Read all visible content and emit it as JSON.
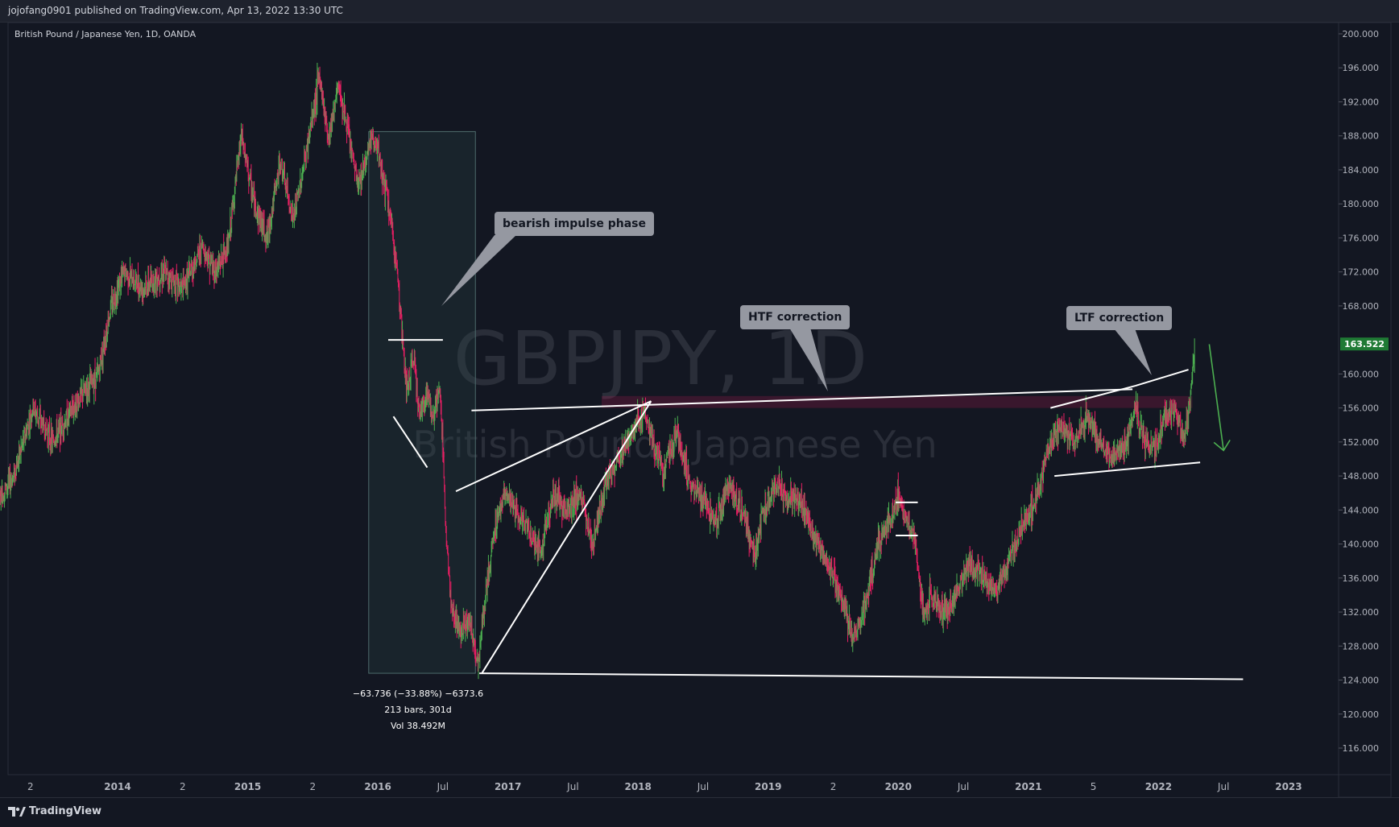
{
  "header": {
    "publisher_line": "jojofang0901 published on TradingView.com, Apr 13, 2022 13:30 UTC"
  },
  "symbol_label": "British Pound / Japanese Yen, 1D, OANDA",
  "watermark": {
    "ticker": "GBPJPY, 1D",
    "name": "British Pound / Japanese Yen"
  },
  "callouts": {
    "bearish": "bearish impulse phase",
    "htf": "HTF correction",
    "ltf": "LTF correction"
  },
  "measure": {
    "line1": "−63.736 (−33.88%) −6373.6",
    "line2": "213 bars, 301d",
    "line3": "Vol 38.492M"
  },
  "footer": {
    "brand": "TradingView"
  },
  "colors": {
    "up": "#4caf50",
    "down": "#e91e63",
    "price_tag": "#1f7a34",
    "arrow": "#4caf50"
  },
  "chart_data": {
    "type": "line",
    "title": "British Pound / Japanese Yen, 1D, OANDA",
    "y_ticks": [
      "200.000",
      "196.000",
      "192.000",
      "188.000",
      "184.000",
      "180.000",
      "176.000",
      "172.000",
      "168.000",
      "164.000",
      "160.000",
      "156.000",
      "152.000",
      "148.000",
      "144.000",
      "140.000",
      "136.000",
      "132.000",
      "128.000",
      "124.000",
      "120.000",
      "116.000"
    ],
    "ylim": [
      112,
      202
    ],
    "x_ticks": [
      {
        "label": "2",
        "t": 2013.33
      },
      {
        "label": "2014",
        "t": 2014.0
      },
      {
        "label": "2",
        "t": 2014.5
      },
      {
        "label": "2015",
        "t": 2015.0
      },
      {
        "label": "2",
        "t": 2015.5
      },
      {
        "label": "2016",
        "t": 2016.0
      },
      {
        "label": "Jul",
        "t": 2016.5
      },
      {
        "label": "2017",
        "t": 2017.0
      },
      {
        "label": "Jul",
        "t": 2017.5
      },
      {
        "label": "2018",
        "t": 2018.0
      },
      {
        "label": "Jul",
        "t": 2018.5
      },
      {
        "label": "2019",
        "t": 2019.0
      },
      {
        "label": "2",
        "t": 2019.5
      },
      {
        "label": "2020",
        "t": 2020.0
      },
      {
        "label": "Jul",
        "t": 2020.5
      },
      {
        "label": "2021",
        "t": 2021.0
      },
      {
        "label": "5",
        "t": 2021.5
      },
      {
        "label": "2022",
        "t": 2022.0
      },
      {
        "label": "Jul",
        "t": 2022.5
      },
      {
        "label": "2023",
        "t": 2023.0
      }
    ],
    "last_price": 163.522,
    "price_path": [
      [
        2013.0,
        143
      ],
      [
        2013.2,
        148
      ],
      [
        2013.35,
        156
      ],
      [
        2013.5,
        152
      ],
      [
        2013.7,
        157
      ],
      [
        2013.85,
        160
      ],
      [
        2013.95,
        168
      ],
      [
        2014.05,
        172
      ],
      [
        2014.2,
        170
      ],
      [
        2014.35,
        172
      ],
      [
        2014.5,
        170
      ],
      [
        2014.65,
        175
      ],
      [
        2014.75,
        172
      ],
      [
        2014.85,
        175
      ],
      [
        2014.95,
        188
      ],
      [
        2015.05,
        180
      ],
      [
        2015.15,
        176
      ],
      [
        2015.25,
        185
      ],
      [
        2015.35,
        178
      ],
      [
        2015.45,
        186
      ],
      [
        2015.55,
        195
      ],
      [
        2015.62,
        188
      ],
      [
        2015.7,
        194
      ],
      [
        2015.75,
        190
      ],
      [
        2015.85,
        182
      ],
      [
        2015.95,
        188
      ],
      [
        2016.0,
        186
      ],
      [
        2016.08,
        180
      ],
      [
        2016.15,
        172
      ],
      [
        2016.22,
        158
      ],
      [
        2016.28,
        162
      ],
      [
        2016.32,
        155
      ],
      [
        2016.38,
        158
      ],
      [
        2016.42,
        155
      ],
      [
        2016.48,
        158
      ],
      [
        2016.52,
        143
      ],
      [
        2016.56,
        133
      ],
      [
        2016.62,
        130
      ],
      [
        2016.7,
        131
      ],
      [
        2016.77,
        126
      ],
      [
        2016.83,
        134
      ],
      [
        2016.9,
        142
      ],
      [
        2016.97,
        146
      ],
      [
        2017.05,
        144
      ],
      [
        2017.15,
        142
      ],
      [
        2017.25,
        139
      ],
      [
        2017.35,
        146
      ],
      [
        2017.45,
        144
      ],
      [
        2017.55,
        146
      ],
      [
        2017.65,
        140
      ],
      [
        2017.75,
        147
      ],
      [
        2017.85,
        150
      ],
      [
        2017.95,
        153
      ],
      [
        2018.05,
        156
      ],
      [
        2018.12,
        151
      ],
      [
        2018.2,
        149
      ],
      [
        2018.3,
        153
      ],
      [
        2018.4,
        147
      ],
      [
        2018.5,
        145
      ],
      [
        2018.6,
        143
      ],
      [
        2018.7,
        147
      ],
      [
        2018.8,
        144
      ],
      [
        2018.9,
        139
      ],
      [
        2018.95,
        143
      ],
      [
        2019.05,
        147
      ],
      [
        2019.15,
        145
      ],
      [
        2019.25,
        145
      ],
      [
        2019.35,
        141
      ],
      [
        2019.45,
        138
      ],
      [
        2019.55,
        134
      ],
      [
        2019.65,
        129
      ],
      [
        2019.72,
        131
      ],
      [
        2019.8,
        137
      ],
      [
        2019.85,
        140
      ],
      [
        2019.95,
        143
      ],
      [
        2020.0,
        146
      ],
      [
        2020.05,
        143
      ],
      [
        2020.12,
        141
      ],
      [
        2020.2,
        131
      ],
      [
        2020.25,
        134
      ],
      [
        2020.35,
        132
      ],
      [
        2020.45,
        134
      ],
      [
        2020.55,
        138
      ],
      [
        2020.65,
        136
      ],
      [
        2020.75,
        134
      ],
      [
        2020.85,
        138
      ],
      [
        2020.95,
        142
      ],
      [
        2021.05,
        145
      ],
      [
        2021.15,
        151
      ],
      [
        2021.25,
        154
      ],
      [
        2021.35,
        152
      ],
      [
        2021.45,
        155
      ],
      [
        2021.55,
        152
      ],
      [
        2021.65,
        150
      ],
      [
        2021.75,
        152
      ],
      [
        2021.82,
        156
      ],
      [
        2021.9,
        152
      ],
      [
        2021.97,
        151
      ],
      [
        2022.05,
        155
      ],
      [
        2022.12,
        156
      ],
      [
        2022.2,
        152
      ],
      [
        2022.25,
        158
      ],
      [
        2022.28,
        163.5
      ]
    ],
    "annotations": {
      "measure_range": {
        "t0": 2015.93,
        "t1": 2016.75,
        "p0": 124.8,
        "p1": 188.5
      },
      "trendlines": [
        [
          [
            2016.08,
            164
          ],
          [
            2016.5,
            164
          ]
        ],
        [
          [
            2016.12,
            155
          ],
          [
            2016.38,
            149
          ]
        ],
        [
          [
            2016.8,
            124.8
          ],
          [
            2018.1,
            156.8
          ]
        ],
        [
          [
            2016.6,
            146.2
          ],
          [
            2018.1,
            156.8
          ]
        ],
        [
          [
            2016.72,
            155.7
          ],
          [
            2021.8,
            158.2
          ]
        ],
        [
          [
            2016.78,
            124.8
          ],
          [
            2022.65,
            124.1
          ]
        ],
        [
          [
            2019.98,
            144.9
          ],
          [
            2020.15,
            144.9
          ]
        ],
        [
          [
            2019.98,
            141.0
          ],
          [
            2020.15,
            141.0
          ]
        ],
        [
          [
            2021.17,
            156
          ],
          [
            2021.82,
            158.6
          ]
        ],
        [
          [
            2021.82,
            158.6
          ],
          [
            2022.23,
            160.5
          ]
        ],
        [
          [
            2021.2,
            148
          ],
          [
            2022.32,
            149.6
          ]
        ]
      ],
      "resistance_zone": {
        "t0": 2017.72,
        "t1": 2022.26,
        "p0": 156.0,
        "p1": 157.4
      },
      "arrow": {
        "from": [
          2022.39,
          163.5
        ],
        "to": [
          2022.5,
          151.0
        ]
      }
    }
  }
}
